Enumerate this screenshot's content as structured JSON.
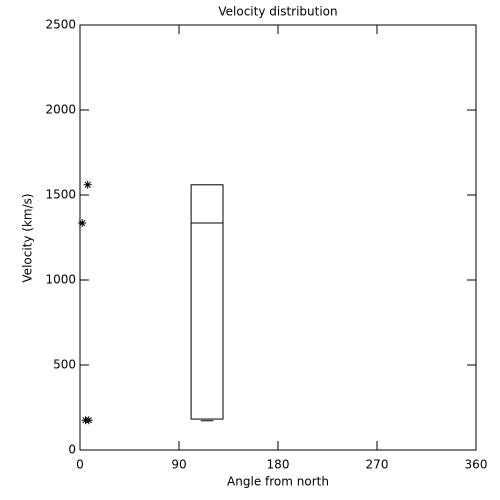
{
  "chart_data": {
    "type": "box",
    "title": "Velocity distribution",
    "xlabel": "Angle from north",
    "ylabel": "Velocity (km/s)",
    "xlim": [
      0,
      360
    ],
    "xticks": [
      0,
      90,
      180,
      270,
      360
    ],
    "ylim": [
      0,
      2500
    ],
    "yticks": [
      0,
      500,
      1000,
      1500,
      2000,
      2500
    ],
    "boxes": [
      {
        "x": [
          101,
          130
        ],
        "min": 172,
        "q1": 182,
        "median": 1335,
        "q3": 1560
      }
    ],
    "points": {
      "x": [
        2,
        7,
        5,
        8
      ],
      "y": [
        1335,
        1560,
        175,
        175
      ]
    },
    "color": "#000000"
  }
}
